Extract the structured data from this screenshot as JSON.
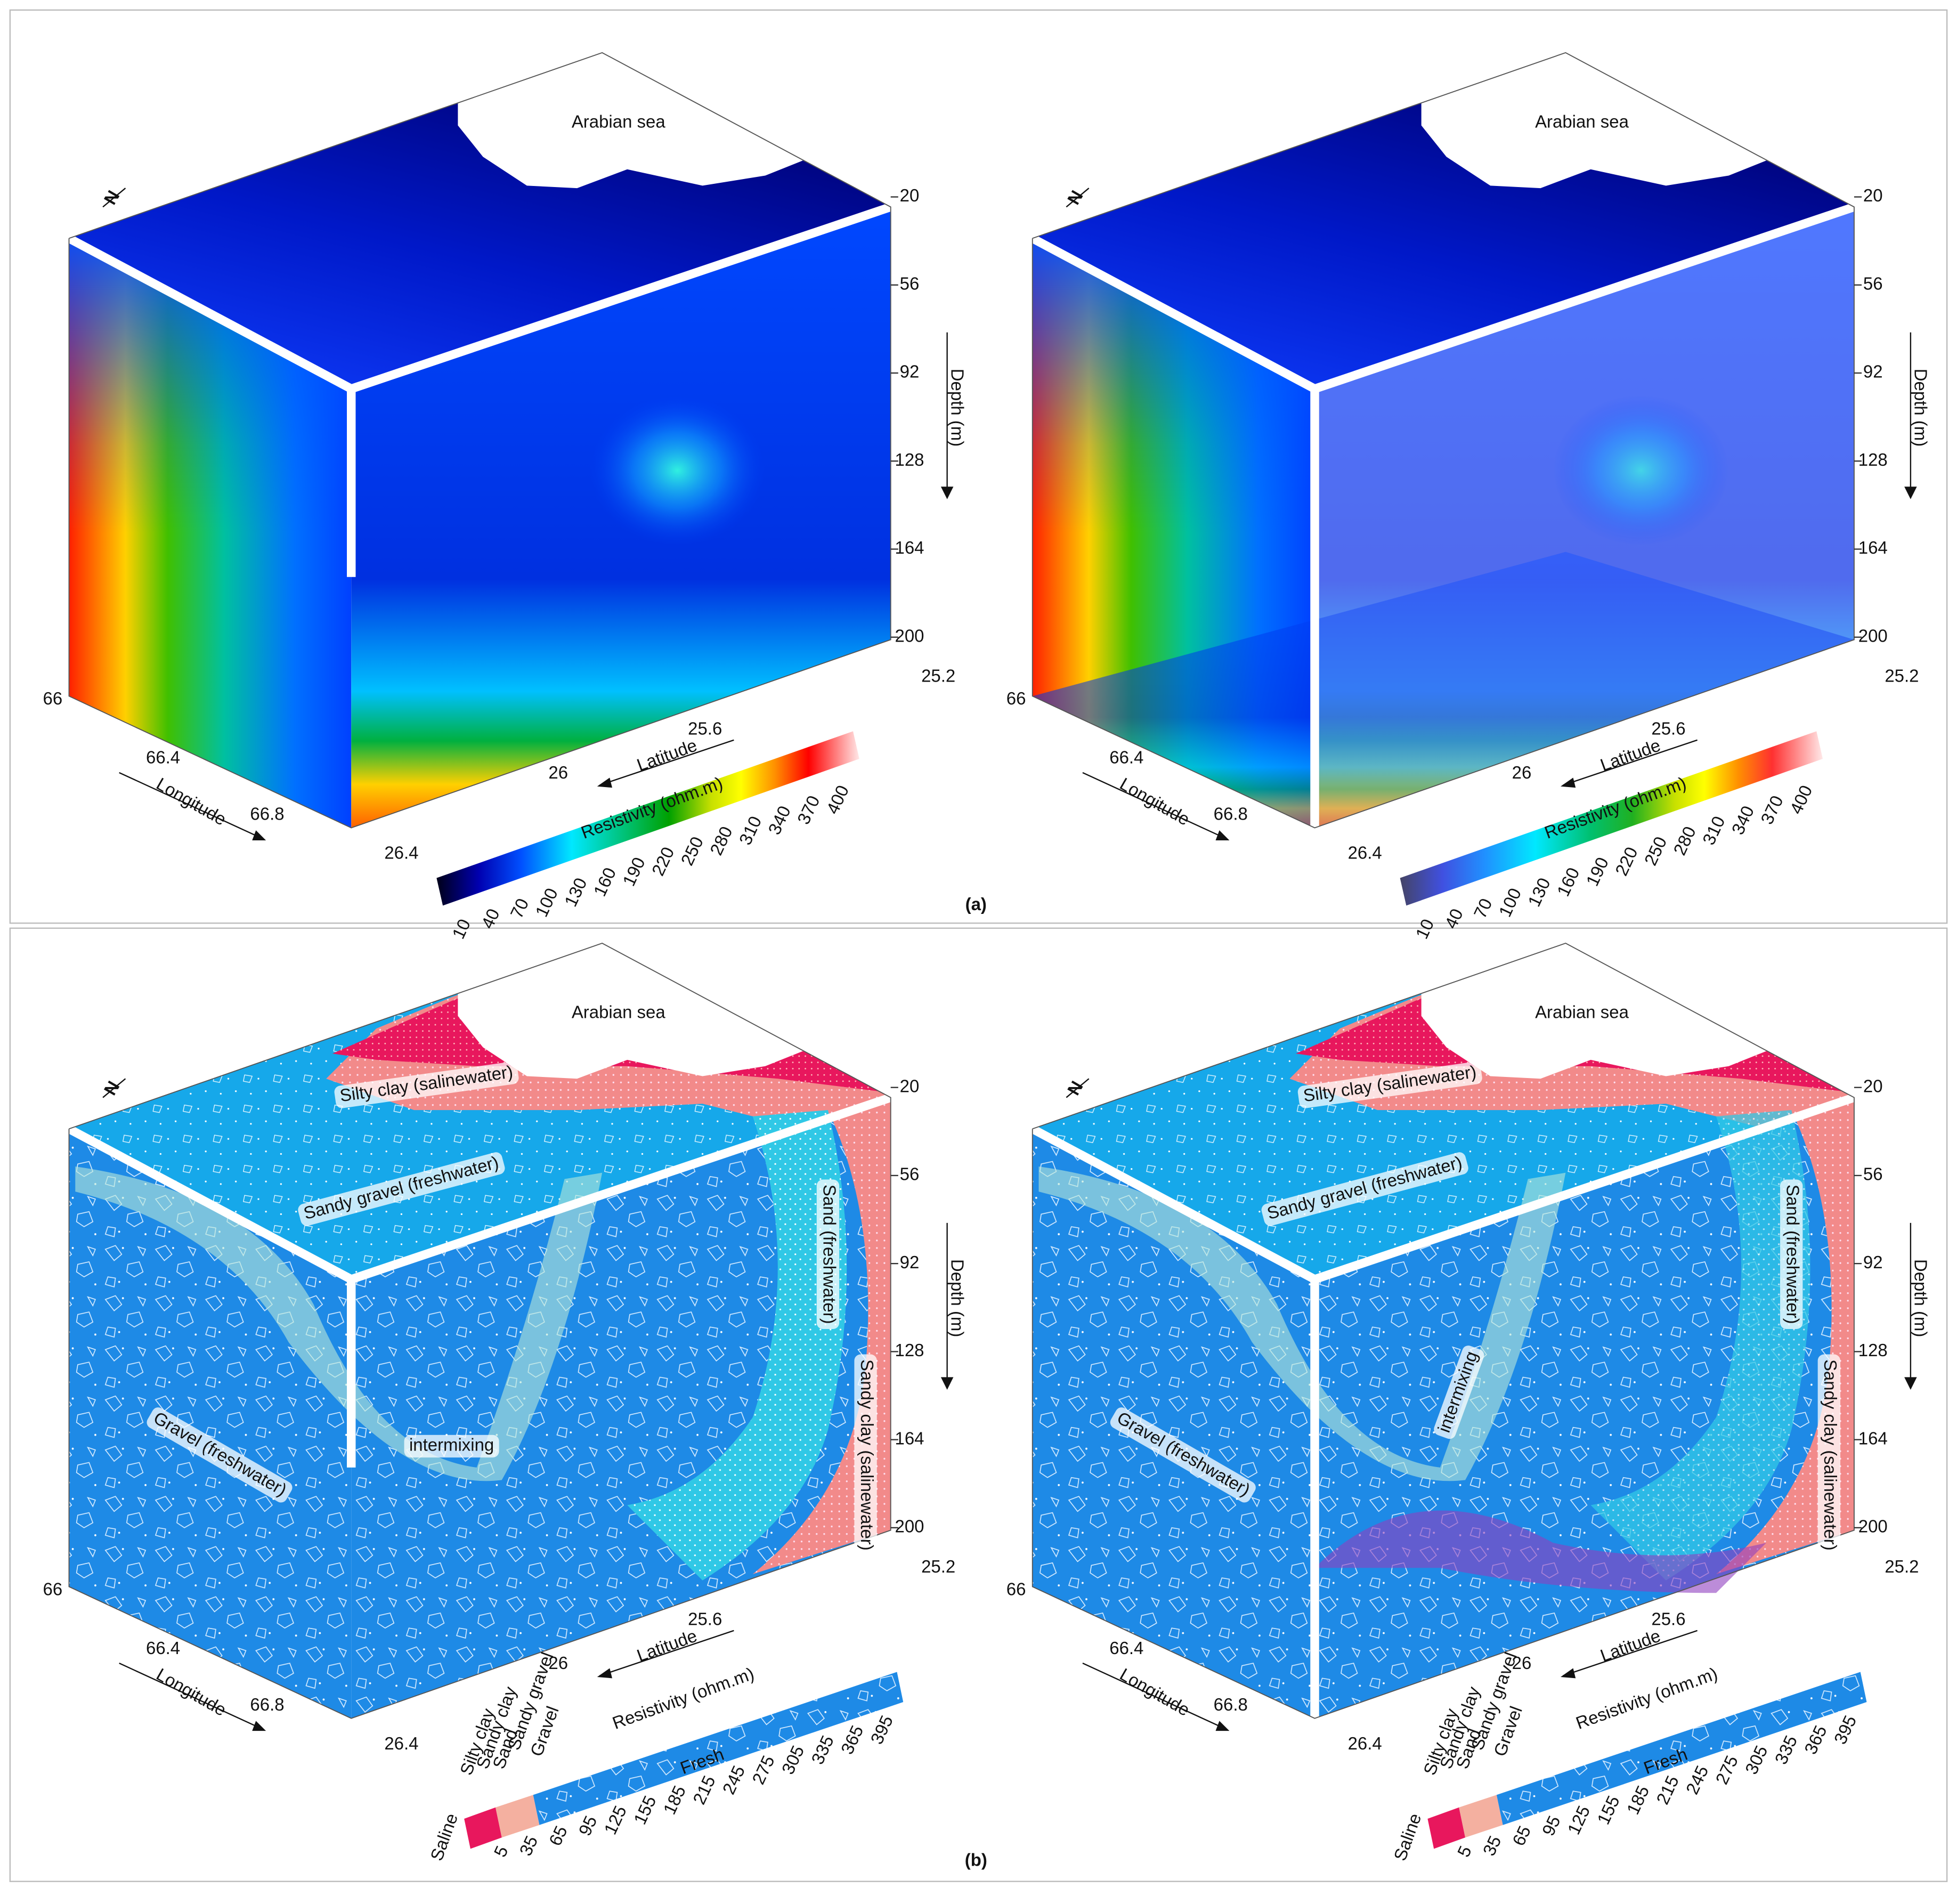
{
  "panels": [
    {
      "caption": "(a)",
      "views": [
        {
          "sea": "Arabian sea",
          "north": "N",
          "depth_label": "Depth (m)",
          "depth_ticks": [
            20,
            56,
            92,
            128,
            164,
            200
          ],
          "longitude_label": "Longitude",
          "longitude_ticks": [
            66,
            66.4,
            66.8
          ],
          "latitude_label": "Latitude",
          "latitude_ticks": [
            26.4,
            26,
            25.6,
            25.2
          ],
          "colorbar_title": "Resistivity (ohm.m)",
          "colorbar_ticks": [
            10,
            40,
            70,
            100,
            130,
            160,
            190,
            220,
            250,
            280,
            310,
            340,
            370,
            400
          ]
        },
        {
          "sea": "Arabian sea",
          "north": "N",
          "depth_label": "Depth (m)",
          "depth_ticks": [
            20,
            56,
            92,
            128,
            164,
            200
          ],
          "longitude_label": "Longitude",
          "longitude_ticks": [
            66,
            66.4,
            66.8
          ],
          "latitude_label": "Latitude",
          "latitude_ticks": [
            26.4,
            26,
            25.6,
            25.2
          ],
          "colorbar_title": "Resistivity (ohm.m)",
          "colorbar_ticks": [
            10,
            40,
            70,
            100,
            130,
            160,
            190,
            220,
            250,
            280,
            310,
            340,
            370,
            400
          ]
        }
      ]
    },
    {
      "caption": "(b)",
      "views": [
        {
          "sea": "Arabian sea",
          "north": "N",
          "depth_label": "Depth (m)",
          "depth_ticks": [
            20,
            56,
            92,
            128,
            164,
            200
          ],
          "longitude_label": "Longitude",
          "longitude_ticks": [
            66,
            66.4,
            66.8
          ],
          "latitude_label": "Latitude",
          "latitude_ticks": [
            26.4,
            26,
            25.6,
            25.2
          ],
          "colorbar_title": "Resistivity (ohm.m)",
          "colorbar_ticks": [
            5,
            35,
            65,
            95,
            125,
            155,
            185,
            215,
            245,
            275,
            305,
            335,
            365,
            395
          ],
          "layers": [
            "Silty clay (salinewater)",
            "Sandy gravel (freshwater)",
            "Sand (freshwater)",
            "Sandy clay (salinewater)",
            "intermixing",
            "Gravel (freshwater)"
          ],
          "legend_classes": [
            "Saline",
            "Silty clay",
            "Sandy clay",
            "Sand",
            "Sandy gravel",
            "Gravel"
          ],
          "fresh": "Fresh"
        },
        {
          "sea": "Arabian sea",
          "north": "N",
          "depth_label": "Depth (m)",
          "depth_ticks": [
            20,
            56,
            92,
            128,
            164,
            200
          ],
          "longitude_label": "Longitude",
          "longitude_ticks": [
            66,
            66.4,
            66.8
          ],
          "latitude_label": "Latitude",
          "latitude_ticks": [
            26.4,
            26,
            25.6,
            25.2
          ],
          "colorbar_title": "Resistivity (ohm.m)",
          "colorbar_ticks": [
            5,
            35,
            65,
            95,
            125,
            155,
            185,
            215,
            245,
            275,
            305,
            335,
            365,
            395
          ],
          "layers": [
            "Silty clay (salinewater)",
            "Sandy gravel (freshwater)",
            "Sand (freshwater)",
            "Sandy clay (salinewater)",
            "intermixing",
            "Gravel (freshwater)"
          ],
          "legend_classes": [
            "Saline",
            "Silty clay",
            "Sandy clay",
            "Sand",
            "Sandy gravel",
            "Gravel"
          ],
          "fresh": "Fresh"
        }
      ]
    }
  ]
}
